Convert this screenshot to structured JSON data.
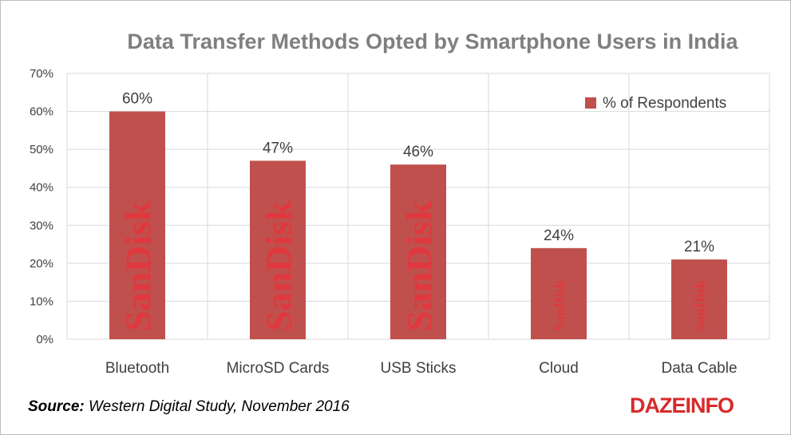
{
  "chart_data": {
    "type": "bar",
    "title": "Data Transfer Methods Opted by Smartphone Users in India",
    "categories": [
      "Bluetooth",
      "MicroSD Cards",
      "USB Sticks",
      "Cloud",
      "Data Cable"
    ],
    "series": [
      {
        "name": "% of Respondents",
        "values": [
          60,
          47,
          46,
          24,
          21
        ],
        "labels": [
          "60%",
          "47%",
          "46%",
          "24%",
          "21%"
        ],
        "color": "#c0504d"
      }
    ],
    "ylim": [
      0,
      70
    ],
    "yticks": [
      0,
      10,
      20,
      30,
      40,
      50,
      60,
      70
    ],
    "ytick_labels": [
      "0%",
      "10%",
      "20%",
      "30%",
      "40%",
      "50%",
      "60%",
      "70%"
    ],
    "grid": true,
    "legend_position": "top-right",
    "bar_watermark": "SanDisk"
  },
  "source": {
    "label": "Source:",
    "text": "Western Digital Study, November 2016"
  },
  "brand": {
    "logo_text": "DAZEINFO"
  },
  "colors": {
    "bar": "#c0504d",
    "title": "#7f7f7f",
    "grid": "#d9d9d9",
    "watermark": "#e0383e",
    "brand": "#d62b2b"
  }
}
